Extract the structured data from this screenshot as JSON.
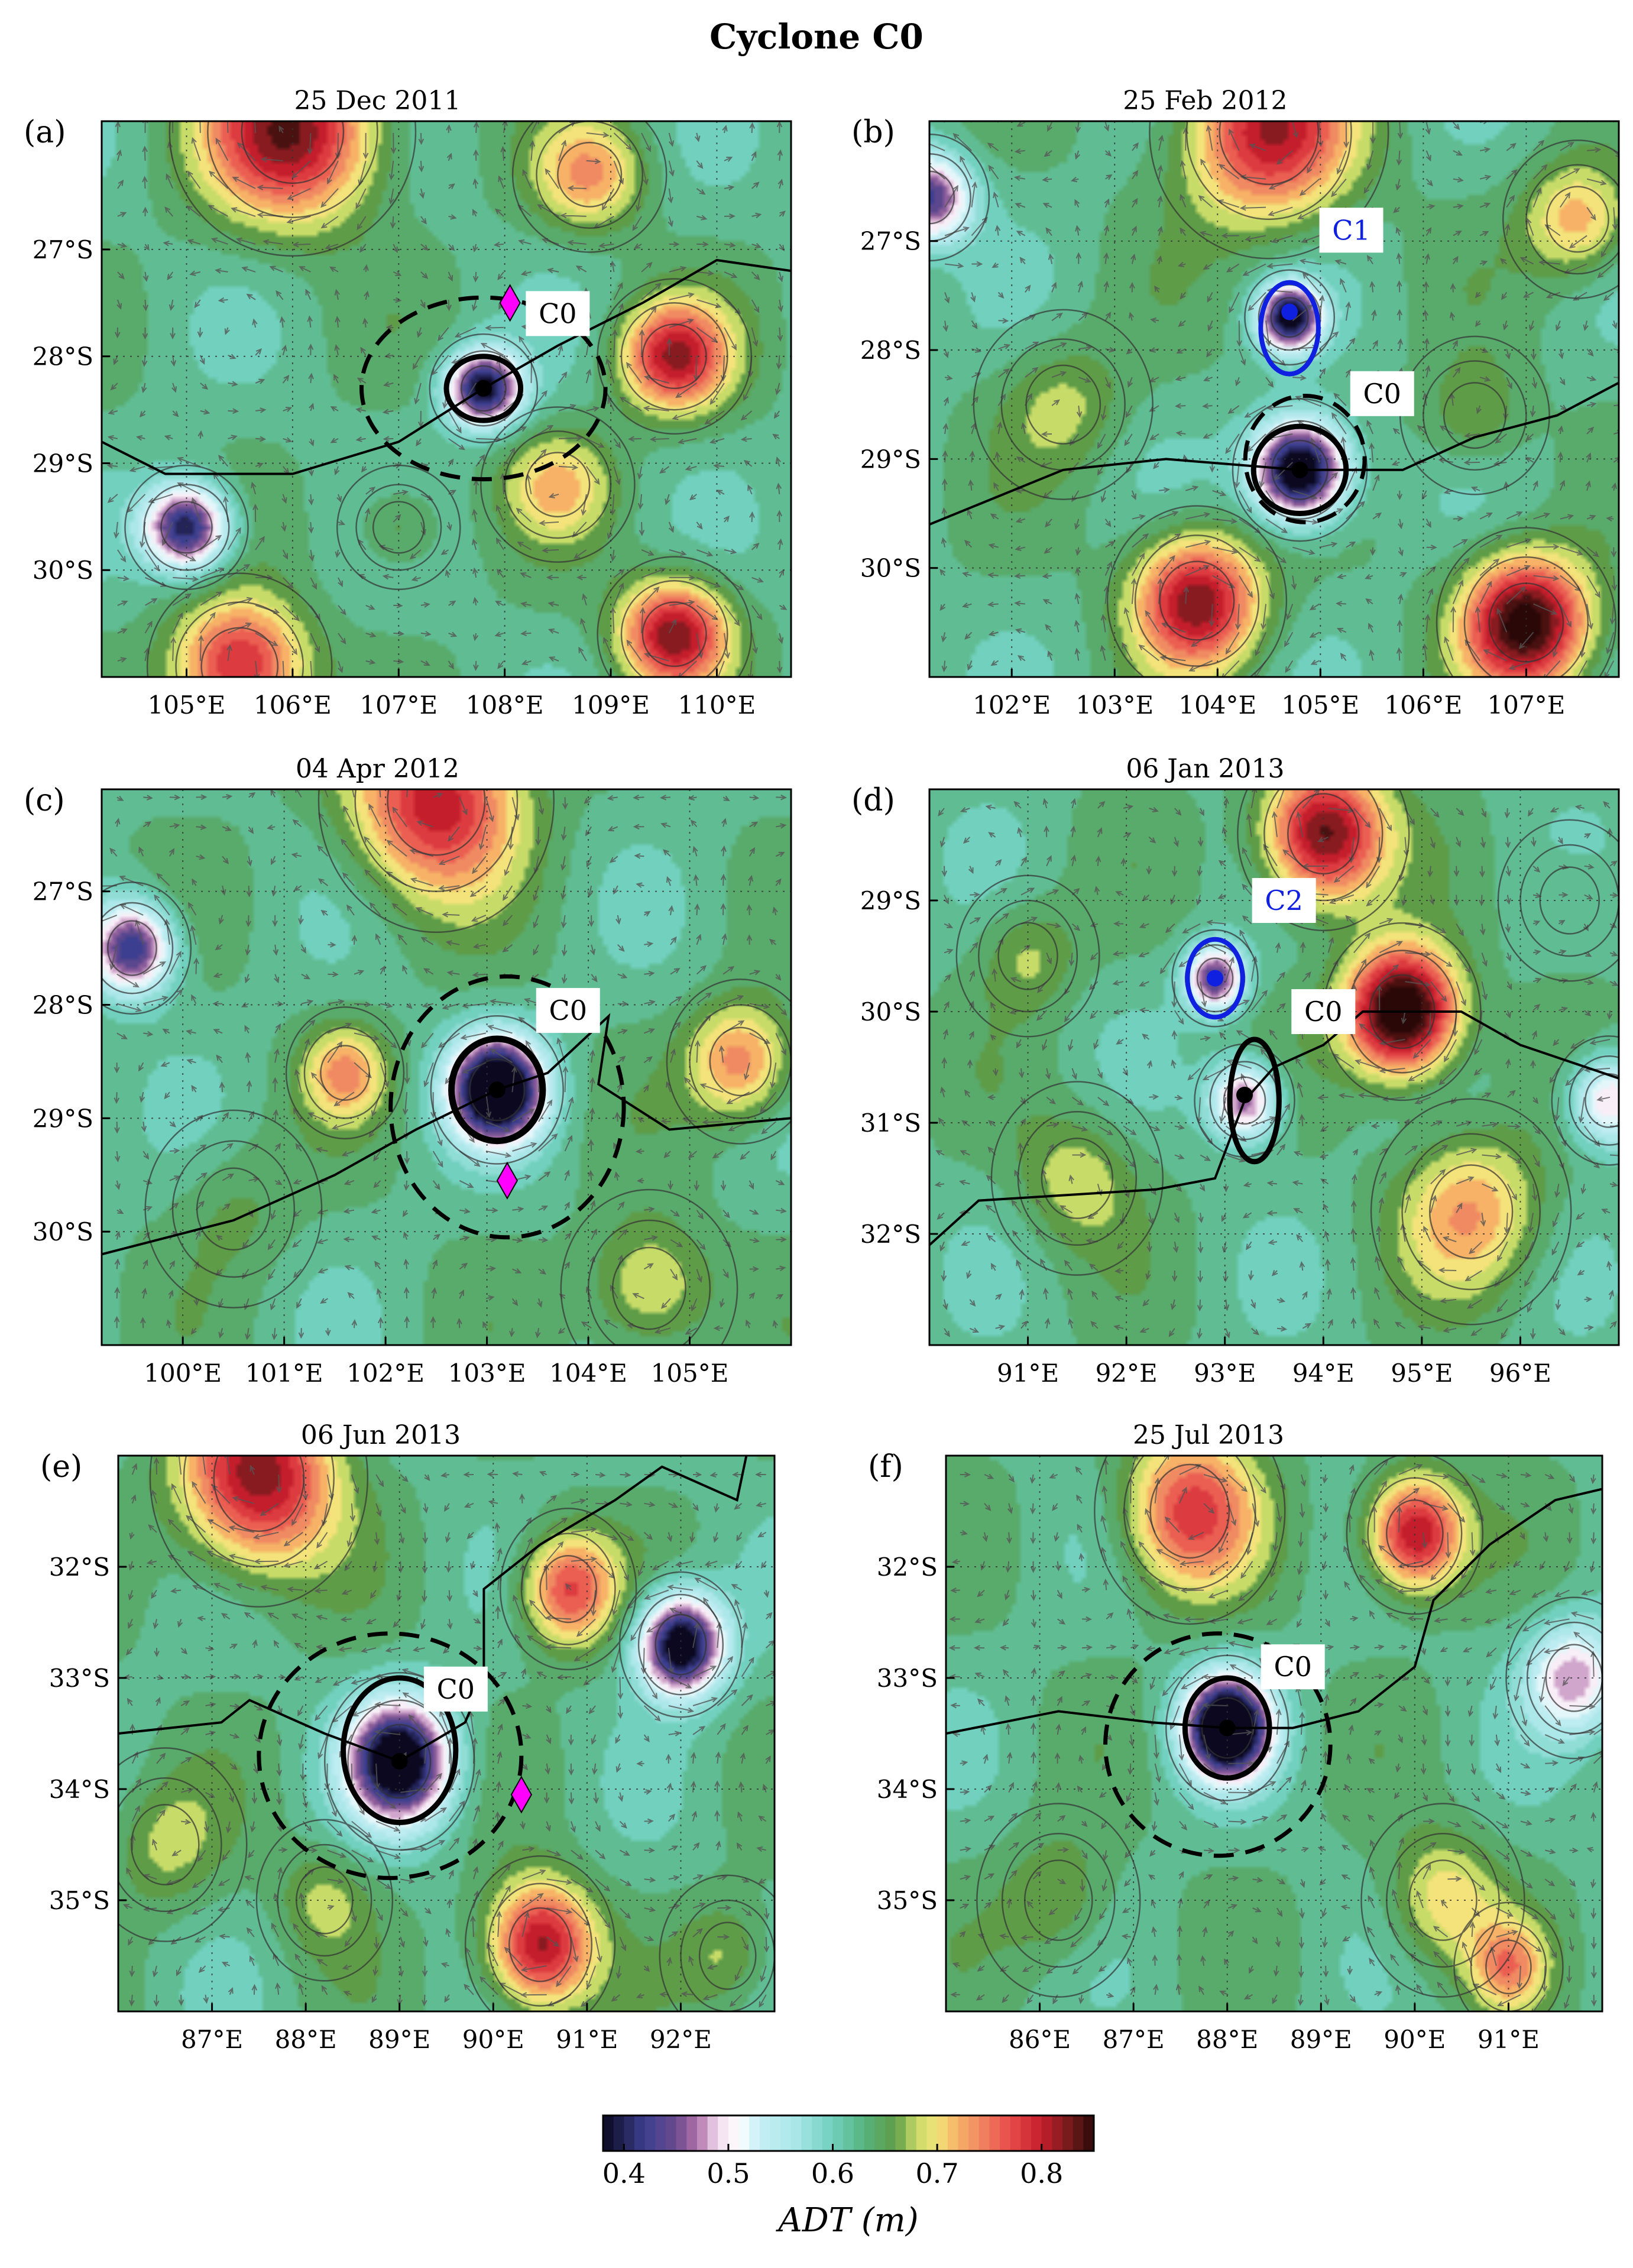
{
  "title": "Cyclone C0",
  "colors": {
    "cyclone": "#000000",
    "other_cyclone": "#1020e0",
    "diamond": "#ff00ff",
    "track": "#000000",
    "grid": "#333333"
  },
  "colormap": {
    "stops": [
      [
        0.38,
        "#0b0820"
      ],
      [
        0.42,
        "#3c3f8f"
      ],
      [
        0.45,
        "#6a4b8e"
      ],
      [
        0.47,
        "#b070a8"
      ],
      [
        0.49,
        "#f1dcef"
      ],
      [
        0.51,
        "#ffffff"
      ],
      [
        0.53,
        "#c6eff5"
      ],
      [
        0.565,
        "#a8e6e8"
      ],
      [
        0.6,
        "#71d0be"
      ],
      [
        0.63,
        "#57b37e"
      ],
      [
        0.66,
        "#5e9c48"
      ],
      [
        0.68,
        "#c7db68"
      ],
      [
        0.7,
        "#f3e37a"
      ],
      [
        0.72,
        "#f7b267"
      ],
      [
        0.74,
        "#f08a62"
      ],
      [
        0.77,
        "#e84a4a"
      ],
      [
        0.8,
        "#c41e2c"
      ],
      [
        0.83,
        "#6a1a1a"
      ],
      [
        0.85,
        "#2a0808"
      ]
    ]
  },
  "colorbar": {
    "ticks": [
      "0.4",
      "0.5",
      "0.6",
      "0.7",
      "0.8"
    ],
    "label": "ADT (m)"
  },
  "panels": [
    {
      "letter": "(a)",
      "date": "25 Dec 2011",
      "lon": [
        104.2,
        110.7
      ],
      "lat": [
        -31.0,
        -25.8
      ],
      "xticks": [
        105,
        106,
        107,
        108,
        109,
        110
      ],
      "xtick_labels": [
        "105°E",
        "106°E",
        "107°E",
        "108°E",
        "109°E",
        "110°E"
      ],
      "yticks": [
        -27,
        -28,
        -29,
        -30
      ],
      "ytick_labels": [
        "27°S",
        "28°S",
        "29°S",
        "30°S"
      ],
      "features": [
        {
          "lon": 107.8,
          "lat": -28.3,
          "amp": -0.25,
          "r": 0.35
        },
        {
          "lon": 105.0,
          "lat": -29.6,
          "amp": -0.24,
          "r": 0.4
        },
        {
          "lon": 106.0,
          "lat": -25.9,
          "amp": 0.2,
          "r": 0.8
        },
        {
          "lon": 109.6,
          "lat": -28.0,
          "amp": 0.18,
          "r": 0.5
        },
        {
          "lon": 109.6,
          "lat": -30.6,
          "amp": 0.2,
          "r": 0.5
        },
        {
          "lon": 105.5,
          "lat": -30.9,
          "amp": 0.18,
          "r": 0.6
        },
        {
          "lon": 108.8,
          "lat": -26.3,
          "amp": 0.1,
          "r": 0.5
        },
        {
          "lon": 107.0,
          "lat": -29.6,
          "amp": 0.05,
          "r": 0.4
        },
        {
          "lon": 108.5,
          "lat": -29.2,
          "amp": 0.08,
          "r": 0.5
        }
      ],
      "track": [
        [
          104.2,
          -28.8
        ],
        [
          104.8,
          -29.1
        ],
        [
          106.0,
          -29.1
        ],
        [
          107.0,
          -28.8
        ],
        [
          107.8,
          -28.3
        ],
        [
          108.5,
          -27.9
        ],
        [
          109.3,
          -27.5
        ],
        [
          110.0,
          -27.1
        ],
        [
          110.7,
          -27.2
        ]
      ],
      "centers": [
        {
          "lon": 107.8,
          "lat": -28.3,
          "color": "cyclone"
        }
      ],
      "contours": [
        {
          "lon": 107.8,
          "lat": -28.3,
          "rx": 0.35,
          "ry": 0.3,
          "color": "cyclone",
          "width": 9,
          "dash": false
        }
      ],
      "outer": [
        {
          "lon": 107.8,
          "lat": -28.3,
          "rx": 1.15,
          "ry": 0.85,
          "color": "cyclone",
          "width": 7,
          "dash": true
        }
      ],
      "diamonds": [
        {
          "lon": 108.05,
          "lat": -27.5
        }
      ],
      "labels": [
        {
          "text": "C0",
          "lon": 108.5,
          "lat": -27.6,
          "color": "cyclone"
        }
      ]
    },
    {
      "letter": "(b)",
      "date": "25 Feb 2012",
      "lon": [
        101.2,
        107.9
      ],
      "lat": [
        -31.0,
        -25.9
      ],
      "xticks": [
        102,
        103,
        104,
        105,
        106,
        107
      ],
      "xtick_labels": [
        "102°E",
        "103°E",
        "104°E",
        "105°E",
        "106°E",
        "107°E"
      ],
      "yticks": [
        -27,
        -28,
        -29,
        -30
      ],
      "ytick_labels": [
        "27°S",
        "28°S",
        "29°S",
        "30°S"
      ],
      "features": [
        {
          "lon": 104.8,
          "lat": -29.1,
          "amp": -0.3,
          "r": 0.45
        },
        {
          "lon": 104.7,
          "lat": -27.7,
          "amp": -0.25,
          "r": 0.3
        },
        {
          "lon": 101.2,
          "lat": -26.6,
          "amp": -0.2,
          "r": 0.4
        },
        {
          "lon": 103.8,
          "lat": -30.3,
          "amp": 0.2,
          "r": 0.6
        },
        {
          "lon": 107.0,
          "lat": -30.5,
          "amp": 0.24,
          "r": 0.6
        },
        {
          "lon": 104.5,
          "lat": -26.0,
          "amp": 0.18,
          "r": 0.8
        },
        {
          "lon": 107.5,
          "lat": -26.8,
          "amp": 0.1,
          "r": 0.5
        },
        {
          "lon": 106.5,
          "lat": -28.6,
          "amp": 0.05,
          "r": 0.5
        },
        {
          "lon": 102.5,
          "lat": -28.5,
          "amp": 0.05,
          "r": 0.6
        }
      ],
      "track": [
        [
          101.2,
          -29.6
        ],
        [
          102.5,
          -29.1
        ],
        [
          103.5,
          -29.0
        ],
        [
          104.8,
          -29.1
        ],
        [
          105.8,
          -29.1
        ],
        [
          106.5,
          -28.8
        ],
        [
          107.3,
          -28.6
        ],
        [
          107.9,
          -28.3
        ]
      ],
      "centers": [
        {
          "lon": 104.8,
          "lat": -29.1,
          "color": "cyclone"
        },
        {
          "lon": 104.7,
          "lat": -27.65,
          "color": "other_cyclone"
        }
      ],
      "contours": [
        {
          "lon": 104.8,
          "lat": -29.1,
          "rx": 0.45,
          "ry": 0.4,
          "color": "cyclone",
          "width": 9,
          "dash": false
        },
        {
          "lon": 104.7,
          "lat": -27.8,
          "rx": 0.28,
          "ry": 0.42,
          "color": "other_cyclone",
          "width": 8,
          "dash": false
        }
      ],
      "outer": [
        {
          "lon": 104.85,
          "lat": -29.0,
          "rx": 0.58,
          "ry": 0.58,
          "color": "cyclone",
          "width": 7,
          "dash": true
        }
      ],
      "diamonds": [],
      "labels": [
        {
          "text": "C1",
          "lon": 105.3,
          "lat": -26.9,
          "color": "other_cyclone"
        },
        {
          "text": "C0",
          "lon": 105.6,
          "lat": -28.4,
          "color": "cyclone"
        }
      ]
    },
    {
      "letter": "(c)",
      "date": "04 Apr 2012",
      "lon": [
        99.2,
        106.0
      ],
      "lat": [
        -31.0,
        -26.1
      ],
      "xticks": [
        100,
        101,
        102,
        103,
        104,
        105
      ],
      "xtick_labels": [
        "100°E",
        "101°E",
        "102°E",
        "103°E",
        "104°E",
        "105°E"
      ],
      "yticks": [
        -27,
        -28,
        -29,
        -30
      ],
      "ytick_labels": [
        "27°S",
        "28°S",
        "29°S",
        "30°S"
      ],
      "features": [
        {
          "lon": 103.1,
          "lat": -28.75,
          "amp": -0.32,
          "r": 0.45
        },
        {
          "lon": 99.5,
          "lat": -27.5,
          "amp": -0.22,
          "r": 0.4
        },
        {
          "lon": 102.5,
          "lat": -26.2,
          "amp": 0.18,
          "r": 0.8
        },
        {
          "lon": 101.6,
          "lat": -28.6,
          "amp": 0.1,
          "r": 0.4
        },
        {
          "lon": 105.5,
          "lat": -28.5,
          "amp": 0.12,
          "r": 0.5
        },
        {
          "lon": 104.6,
          "lat": -30.5,
          "amp": 0.08,
          "r": 0.6
        },
        {
          "lon": 100.5,
          "lat": -29.8,
          "amp": 0.03,
          "r": 0.6
        }
      ],
      "track": [
        [
          99.2,
          -30.2
        ],
        [
          100.5,
          -29.9
        ],
        [
          101.5,
          -29.5
        ],
        [
          102.3,
          -29.1
        ],
        [
          103.1,
          -28.75
        ],
        [
          103.6,
          -28.6
        ],
        [
          104.2,
          -28.1
        ],
        [
          104.1,
          -28.7
        ],
        [
          104.8,
          -29.1
        ],
        [
          106.0,
          -29.0
        ]
      ],
      "centers": [
        {
          "lon": 103.1,
          "lat": -28.75,
          "color": "cyclone"
        }
      ],
      "contours": [
        {
          "lon": 103.1,
          "lat": -28.75,
          "rx": 0.45,
          "ry": 0.45,
          "color": "cyclone",
          "width": 11,
          "dash": false
        }
      ],
      "outer": [
        {
          "lon": 103.2,
          "lat": -28.9,
          "rx": 1.15,
          "ry": 1.15,
          "color": "cyclone",
          "width": 7,
          "dash": true
        }
      ],
      "diamonds": [
        {
          "lon": 103.2,
          "lat": -29.55
        }
      ],
      "labels": [
        {
          "text": "C0",
          "lon": 103.8,
          "lat": -28.05,
          "color": "cyclone"
        }
      ]
    },
    {
      "letter": "(d)",
      "date": "06 Jan 2013",
      "lon": [
        90.0,
        97.0
      ],
      "lat": [
        -33.0,
        -28.0
      ],
      "xticks": [
        91,
        92,
        93,
        94,
        95,
        96
      ],
      "xtick_labels": [
        "91°E",
        "92°E",
        "93°E",
        "94°E",
        "95°E",
        "96°E"
      ],
      "yticks": [
        -29,
        -30,
        -31,
        -32
      ],
      "ytick_labels": [
        "29°S",
        "30°S",
        "31°S",
        "32°S"
      ],
      "features": [
        {
          "lon": 93.2,
          "lat": -30.8,
          "amp": -0.18,
          "r": 0.35
        },
        {
          "lon": 92.9,
          "lat": -29.7,
          "amp": -0.2,
          "r": 0.3
        },
        {
          "lon": 96.9,
          "lat": -30.8,
          "amp": -0.15,
          "r": 0.4
        },
        {
          "lon": 94.8,
          "lat": -30.0,
          "amp": 0.28,
          "r": 0.55
        },
        {
          "lon": 94.0,
          "lat": -28.4,
          "amp": 0.22,
          "r": 0.6
        },
        {
          "lon": 95.5,
          "lat": -31.8,
          "amp": 0.1,
          "r": 0.7
        },
        {
          "lon": 91.0,
          "lat": -29.5,
          "amp": 0.05,
          "r": 0.5
        },
        {
          "lon": 91.5,
          "lat": -31.5,
          "amp": 0.06,
          "r": 0.6
        },
        {
          "lon": 96.5,
          "lat": -29.0,
          "amp": 0.02,
          "r": 0.5
        }
      ],
      "track": [
        [
          90.0,
          -32.1
        ],
        [
          90.5,
          -31.7
        ],
        [
          92.3,
          -31.6
        ],
        [
          92.9,
          -31.5
        ],
        [
          93.2,
          -30.8
        ],
        [
          93.5,
          -30.5
        ],
        [
          94.0,
          -30.3
        ],
        [
          94.4,
          -30.0
        ],
        [
          95.4,
          -30.0
        ],
        [
          96.0,
          -30.3
        ],
        [
          97.0,
          -30.6
        ]
      ],
      "centers": [
        {
          "lon": 93.2,
          "lat": -30.75,
          "color": "cyclone"
        },
        {
          "lon": 92.9,
          "lat": -29.7,
          "color": "other_cyclone"
        }
      ],
      "contours": [
        {
          "lon": 93.3,
          "lat": -30.8,
          "rx": 0.25,
          "ry": 0.55,
          "color": "cyclone",
          "width": 9,
          "dash": false
        },
        {
          "lon": 92.9,
          "lat": -29.7,
          "rx": 0.28,
          "ry": 0.35,
          "color": "other_cyclone",
          "width": 8,
          "dash": false
        }
      ],
      "outer": [],
      "diamonds": [],
      "labels": [
        {
          "text": "C2",
          "lon": 93.6,
          "lat": -29.0,
          "color": "other_cyclone"
        },
        {
          "text": "C0",
          "lon": 94.0,
          "lat": -30.0,
          "color": "cyclone"
        }
      ]
    },
    {
      "letter": "(e)",
      "date": "06 Jun 2013",
      "lon": [
        86.0,
        93.0
      ],
      "lat": [
        -36.0,
        -31.0
      ],
      "xticks": [
        87,
        88,
        89,
        90,
        91,
        92
      ],
      "xtick_labels": [
        "87°E",
        "88°E",
        "89°E",
        "90°E",
        "91°E",
        "92°E"
      ],
      "yticks": [
        -32,
        -33,
        -34,
        -35
      ],
      "ytick_labels": [
        "32°S",
        "33°S",
        "34°S",
        "35°S"
      ],
      "features": [
        {
          "lon": 89.0,
          "lat": -33.75,
          "amp": -0.28,
          "r": 0.55
        },
        {
          "lon": 92.0,
          "lat": -32.7,
          "amp": -0.28,
          "r": 0.45
        },
        {
          "lon": 87.5,
          "lat": -31.2,
          "amp": 0.2,
          "r": 0.8
        },
        {
          "lon": 90.8,
          "lat": -32.2,
          "amp": 0.15,
          "r": 0.5
        },
        {
          "lon": 90.5,
          "lat": -35.4,
          "amp": 0.2,
          "r": 0.55
        },
        {
          "lon": 86.5,
          "lat": -34.5,
          "amp": 0.05,
          "r": 0.6
        },
        {
          "lon": 92.5,
          "lat": -35.5,
          "amp": 0.05,
          "r": 0.5
        },
        {
          "lon": 88.2,
          "lat": -35.0,
          "amp": 0.05,
          "r": 0.5
        }
      ],
      "track": [
        [
          86.0,
          -33.5
        ],
        [
          87.1,
          -33.4
        ],
        [
          87.4,
          -33.2
        ],
        [
          88.2,
          -33.5
        ],
        [
          89.0,
          -33.75
        ],
        [
          89.7,
          -33.4
        ],
        [
          89.9,
          -33.0
        ],
        [
          89.9,
          -32.2
        ],
        [
          90.5,
          -31.8
        ],
        [
          91.3,
          -31.4
        ],
        [
          91.8,
          -31.1
        ],
        [
          92.6,
          -31.4
        ],
        [
          92.7,
          -31.0
        ]
      ],
      "centers": [
        {
          "lon": 89.0,
          "lat": -33.75,
          "color": "cyclone"
        }
      ],
      "contours": [
        {
          "lon": 89.0,
          "lat": -33.65,
          "rx": 0.6,
          "ry": 0.65,
          "color": "cyclone",
          "width": 9,
          "dash": false
        }
      ],
      "outer": [
        {
          "lon": 88.9,
          "lat": -33.7,
          "rx": 1.4,
          "ry": 1.1,
          "color": "cyclone",
          "width": 7,
          "dash": true
        }
      ],
      "diamonds": [
        {
          "lon": 90.3,
          "lat": -34.05
        }
      ],
      "labels": [
        {
          "text": "C0",
          "lon": 89.6,
          "lat": -33.1,
          "color": "cyclone"
        }
      ]
    },
    {
      "letter": "(f)",
      "date": "25 Jul 2013",
      "lon": [
        85.0,
        92.0
      ],
      "lat": [
        -36.0,
        -31.0
      ],
      "xticks": [
        86,
        87,
        88,
        89,
        90,
        91
      ],
      "xtick_labels": [
        "86°E",
        "87°E",
        "88°E",
        "89°E",
        "90°E",
        "91°E"
      ],
      "yticks": [
        -32,
        -33,
        -34,
        -35
      ],
      "ytick_labels": [
        "32°S",
        "33°S",
        "34°S",
        "35°S"
      ],
      "features": [
        {
          "lon": 88.0,
          "lat": -33.45,
          "amp": -0.33,
          "r": 0.45
        },
        {
          "lon": 91.7,
          "lat": -33.0,
          "amp": -0.15,
          "r": 0.5
        },
        {
          "lon": 87.6,
          "lat": -31.5,
          "amp": 0.15,
          "r": 0.7
        },
        {
          "lon": 90.0,
          "lat": -31.7,
          "amp": 0.2,
          "r": 0.5
        },
        {
          "lon": 90.3,
          "lat": -35.0,
          "amp": 0.08,
          "r": 0.6
        },
        {
          "lon": 86.2,
          "lat": -35.0,
          "amp": 0.05,
          "r": 0.6
        },
        {
          "lon": 91.0,
          "lat": -35.6,
          "amp": 0.1,
          "r": 0.4
        }
      ],
      "track": [
        [
          85.0,
          -33.5
        ],
        [
          86.2,
          -33.3
        ],
        [
          87.2,
          -33.4
        ],
        [
          88.0,
          -33.45
        ],
        [
          88.7,
          -33.45
        ],
        [
          89.4,
          -33.3
        ],
        [
          90.0,
          -32.9
        ],
        [
          90.2,
          -32.3
        ],
        [
          90.8,
          -31.8
        ],
        [
          91.5,
          -31.4
        ],
        [
          92.0,
          -31.3
        ]
      ],
      "centers": [
        {
          "lon": 88.0,
          "lat": -33.45,
          "color": "cyclone"
        }
      ],
      "contours": [
        {
          "lon": 88.0,
          "lat": -33.45,
          "rx": 0.45,
          "ry": 0.45,
          "color": "cyclone",
          "width": 9,
          "dash": false
        }
      ],
      "outer": [
        {
          "lon": 87.9,
          "lat": -33.6,
          "rx": 1.2,
          "ry": 1.0,
          "color": "cyclone",
          "width": 7,
          "dash": true
        }
      ],
      "diamonds": [],
      "labels": [
        {
          "text": "C0",
          "lon": 88.7,
          "lat": -32.9,
          "color": "cyclone"
        }
      ]
    }
  ]
}
